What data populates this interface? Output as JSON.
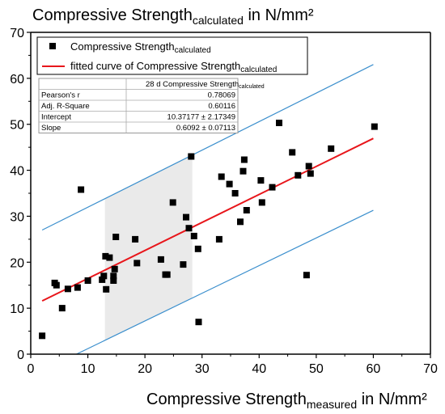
{
  "chart_data": {
    "type": "scatter",
    "title": {
      "main": "Compressive Strength",
      "sub": "calculated",
      "unit": " in N/mm²"
    },
    "xlabel": {
      "main": "Compressive Strength",
      "sub": "measured",
      "unit": " in N/mm²"
    },
    "ylabel": "",
    "xlim": [
      0,
      70
    ],
    "ylim": [
      0,
      70
    ],
    "xticks": [
      0,
      10,
      20,
      30,
      40,
      50,
      60,
      70
    ],
    "yticks": [
      0,
      10,
      20,
      30,
      40,
      50,
      60,
      70
    ],
    "grid": false,
    "legend_position": "top-left",
    "series": [
      {
        "legend": {
          "main": "Compressive Strength",
          "sub": "calculated"
        },
        "marker": "square",
        "color": "#000000",
        "points": [
          [
            2,
            4
          ],
          [
            4.2,
            15.5
          ],
          [
            4.5,
            15
          ],
          [
            5.5,
            10
          ],
          [
            6.5,
            14.2
          ],
          [
            8.2,
            14.5
          ],
          [
            8.8,
            35.8
          ],
          [
            10,
            16
          ],
          [
            12.5,
            16.2
          ],
          [
            12.8,
            17
          ],
          [
            13.1,
            21.3
          ],
          [
            13.2,
            14.1
          ],
          [
            13.8,
            21
          ],
          [
            14.5,
            16
          ],
          [
            14.5,
            17
          ],
          [
            14.7,
            18.5
          ],
          [
            14.9,
            25.5
          ],
          [
            18.3,
            25
          ],
          [
            18.6,
            19.8
          ],
          [
            22.8,
            20.6
          ],
          [
            23.6,
            17.3
          ],
          [
            23.9,
            17.3
          ],
          [
            24.9,
            33
          ],
          [
            26.7,
            19.5
          ],
          [
            27.2,
            29.8
          ],
          [
            27.7,
            27.4
          ],
          [
            28.1,
            43
          ],
          [
            28.6,
            25.7
          ],
          [
            29.3,
            22.9
          ],
          [
            29.4,
            7
          ],
          [
            33,
            25
          ],
          [
            33.4,
            38.6
          ],
          [
            34.8,
            37
          ],
          [
            35.8,
            35
          ],
          [
            36.7,
            28.8
          ],
          [
            37.2,
            39.8
          ],
          [
            37.4,
            42.3
          ],
          [
            37.8,
            31.3
          ],
          [
            40.3,
            37.8
          ],
          [
            40.5,
            33
          ],
          [
            42.3,
            36.3
          ],
          [
            43.5,
            50.3
          ],
          [
            45.8,
            43.9
          ],
          [
            46.8,
            38.9
          ],
          [
            48.3,
            17.2
          ],
          [
            48.7,
            40.9
          ],
          [
            49,
            39.3
          ],
          [
            52.6,
            44.7
          ],
          [
            60.2,
            49.5
          ]
        ]
      }
    ],
    "fit": {
      "legend": {
        "main": "fitted curve of Compressive Strength",
        "sub": "calculated"
      },
      "color": "#e8161b",
      "intercept": 10.37177,
      "slope": 0.6092,
      "x_range": [
        2,
        60
      ]
    },
    "bands": {
      "color": "#3b8fcd",
      "upper": [
        [
          2,
          27
        ],
        [
          60,
          63
        ]
      ],
      "lower": [
        [
          8,
          0
        ],
        [
          60,
          31.3
        ]
      ]
    },
    "shaded_region": {
      "color": "#e6e6e6",
      "x_range": [
        13,
        28.3
      ]
    },
    "stats_table": {
      "header": {
        "main": "28 d Compressive Strength",
        "sub": "calculated"
      },
      "rows": [
        {
          "label": "Pearson's r",
          "value": "0.78069"
        },
        {
          "label": "Adj. R-Square",
          "value": "0.60116"
        },
        {
          "label": "Intercept",
          "value": "10.37177 ± 2.17349"
        },
        {
          "label": "Slope",
          "value": "0.6092 ± 0.07113"
        }
      ]
    }
  }
}
